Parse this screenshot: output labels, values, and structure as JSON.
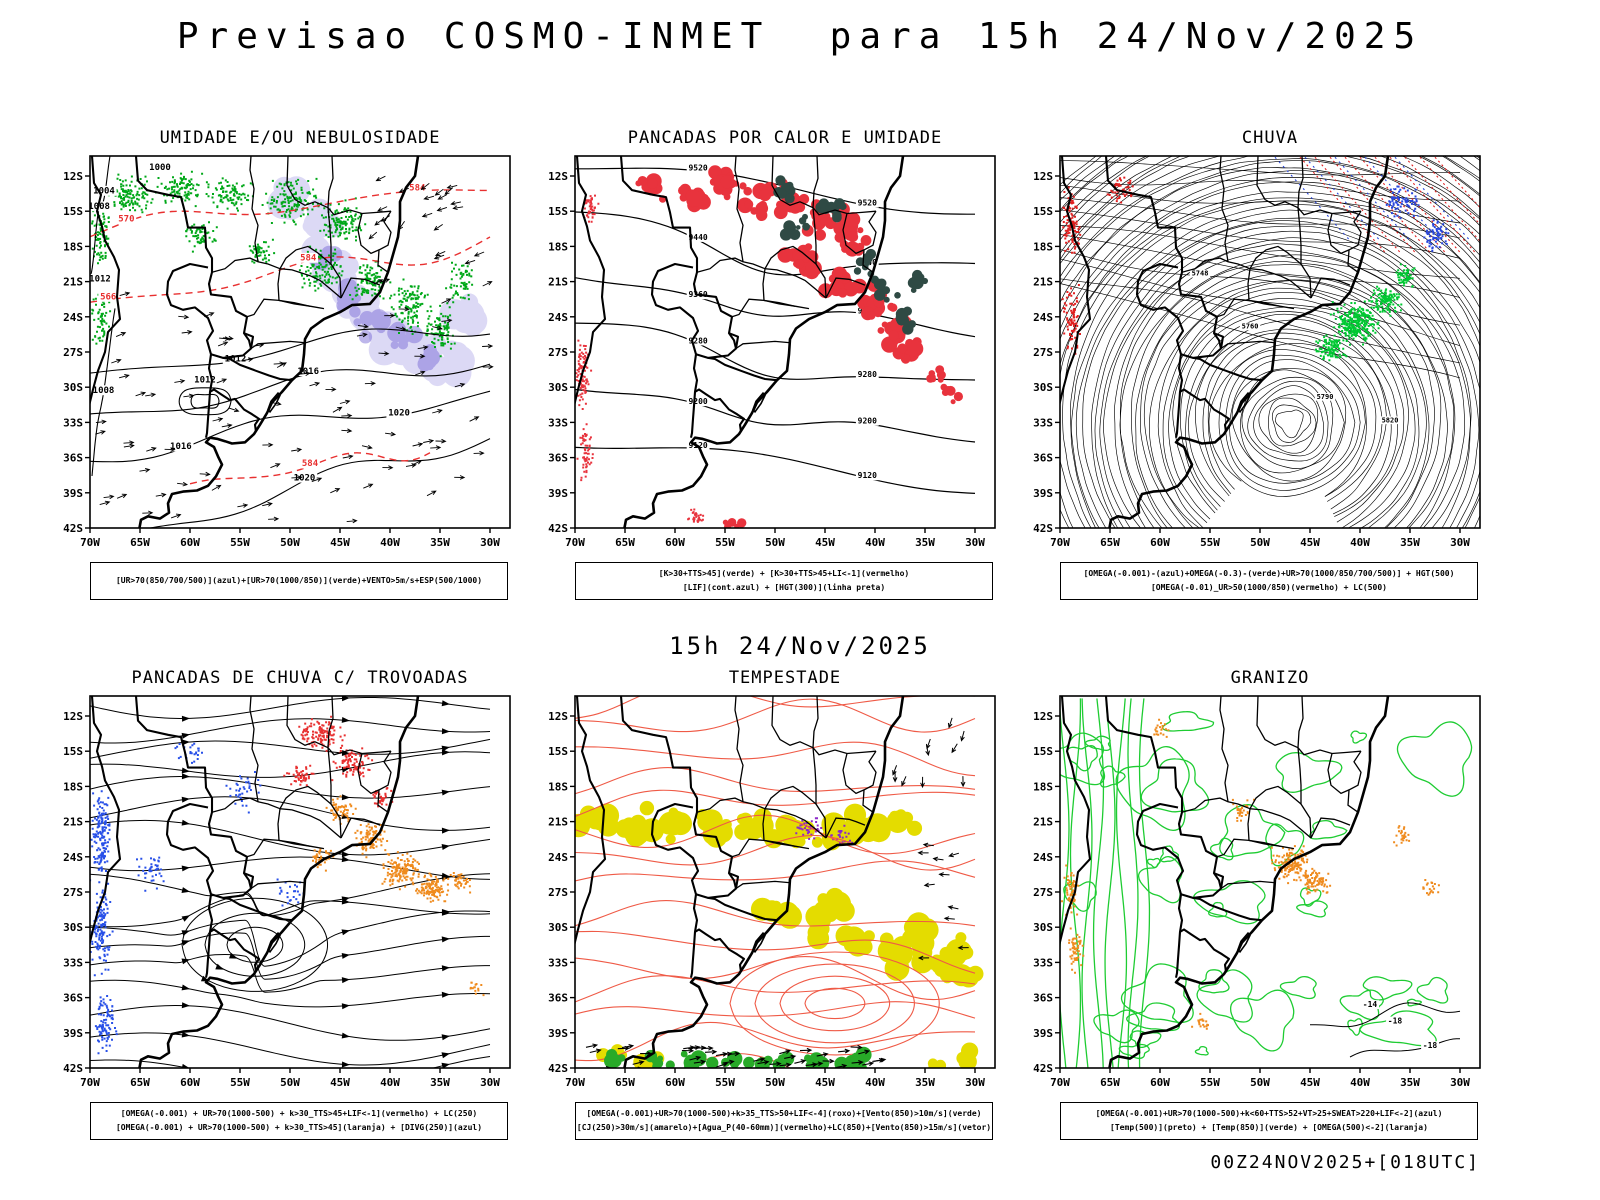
{
  "page": {
    "title": "Previsao COSMO-INMET  para 15h 24/Nov/2025",
    "valid_time_label": "15h 24/Nov/2025",
    "model_run_label": "00Z24NOV2025+[018UTC]"
  },
  "axes": {
    "lat_ticks": [
      "12S",
      "15S",
      "18S",
      "21S",
      "24S",
      "27S",
      "30S",
      "33S",
      "36S",
      "39S",
      "42S"
    ],
    "lon_ticks": [
      "70W",
      "65W",
      "60W",
      "55W",
      "50W",
      "45W",
      "40W",
      "35W",
      "30W"
    ]
  },
  "panels": [
    {
      "id": "umidade-nebulosidade",
      "title": "UMIDADE E/OU NEBULOSIDADE",
      "caption_lines": [
        "[UR>70(850/700/500)](azul)+[UR>70(1000/850)](verde)+VENTO>5m/s+ESP(500/1000)"
      ],
      "colors": {
        "moisture_green": "#00a818",
        "shade_light": "#b3aceb",
        "shade_dark": "#7d6fd8",
        "isobar_black": "#000000",
        "thickness_red": "#e83030"
      },
      "contour_labels": {
        "black": [
          "1000",
          "1004",
          "1008",
          "1012",
          "1016",
          "1020"
        ],
        "red": [
          "570",
          "584",
          "566"
        ]
      }
    },
    {
      "id": "pancadas-calor-umidade",
      "title": "PANCADAS POR CALOR E UMIDADE",
      "caption_lines": [
        "[K>30+TTS>45](verde) + [K>30+TTS>45+LI<-1](vermelho)",
        "[LIF](cont.azul) + [HGT(300)](linha preta)"
      ],
      "colors": {
        "instability_red": "#e8333d",
        "instability_dark": "#2f4a44",
        "height_black": "#000000"
      },
      "contour_labels": {
        "black": [
          "9520",
          "9440",
          "9360",
          "9280",
          "9200",
          "9120"
        ]
      }
    },
    {
      "id": "chuva",
      "title": "CHUVA",
      "caption_lines": [
        "[OMEGA(-0.001)-(azul)+OMEGA(-0.3)-(verde)+UR>70(1000/850/700/500)] + HGT(500)",
        "[OMEGA(-0.01)_UR>50(1000/850)(vermelho) + LC(500)"
      ],
      "colors": {
        "height_black": "#000000",
        "omega_red": "#e02020",
        "omega_green": "#00c832",
        "omega_blue": "#2846dc"
      },
      "contour_labels": {
        "black": [
          "5748",
          "5760",
          "5790",
          "5820"
        ]
      }
    },
    {
      "id": "pancadas-chuva-trovoadas",
      "title": "PANCADAS DE CHUVA C/ TROVOADAS",
      "caption_lines": [
        "[OMEGA(-0.001) + UR>70(1000-500) + k>30_TTS>45+LIF<-1](vermelho) + LC(250)",
        "[OMEGA(-0.001) + UR>70(1000-500) + k>30_TTS>45](laranja) + [DIVG(250)](azul)"
      ],
      "colors": {
        "stream_black": "#000000",
        "divg_blue": "#2850e8",
        "shower_orange": "#ef8b1e",
        "storm_red": "#e83030"
      }
    },
    {
      "id": "tempestade",
      "title": "TEMPESTADE",
      "caption_lines": [
        "[OMEGA(-0.001)+UR>70(1000-500)+k>35_TTS>50+LIF<-4](roxo)+[Vento(850)>10m/s](verde)",
        "[CJ(250)>30m/s](amarelo)+[Agua_P(40-60mm)](vermelho)+LC(850)+[Vento(850)>15m/s](vetor)"
      ],
      "colors": {
        "contour_red": "#ef5a46",
        "jet_yellow": "#e4dc00",
        "wind_green": "#28aa28",
        "vector_black": "#000000",
        "storm_purple": "#8c28c8"
      }
    },
    {
      "id": "granizo",
      "title": "GRANIZO",
      "caption_lines": [
        "[OMEGA(-0.001)+UR>70(1000-500)+k<60+TTS>52+VT>25+SWEAT>220+LIF<-2](azul)",
        "[Temp(500)](preto) + [Temp(850)](verde) + [OMEGA(500)<-2](laranja)"
      ],
      "colors": {
        "temp850_green": "#1ecc32",
        "omega_orange": "#ef8b1e",
        "temp500_black": "#000000"
      },
      "contour_labels": {
        "black": [
          "-18",
          "-14"
        ]
      }
    }
  ]
}
